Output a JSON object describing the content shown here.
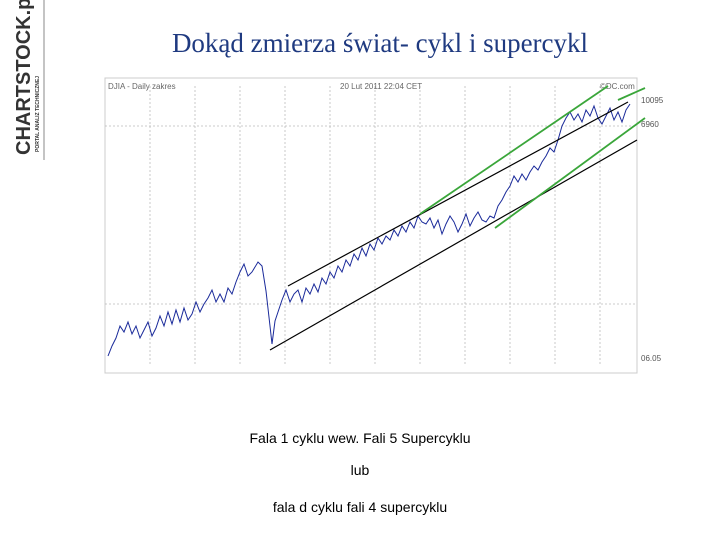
{
  "logo": {
    "name": "CHARTSTOCK.pl",
    "tagline": "PORTAL ANALIZ TECHNICZNEJ"
  },
  "header": {
    "title": "Dokąd zmierza świat- cykl i supercykl"
  },
  "chart": {
    "label_left": "DJIA - Daily zakres",
    "label_center": "20 Lut 2011 22:04 CET",
    "label_right": "©DC.com",
    "price_high": "10095",
    "price_mid": "6960",
    "price_low": "06.05"
  },
  "caption": {
    "line1": "Fala 1  cyklu wew. Fali 5 Supercyklu",
    "line2": "lub",
    "line3": "fala d cyklu fali 4 supercyklu"
  }
}
